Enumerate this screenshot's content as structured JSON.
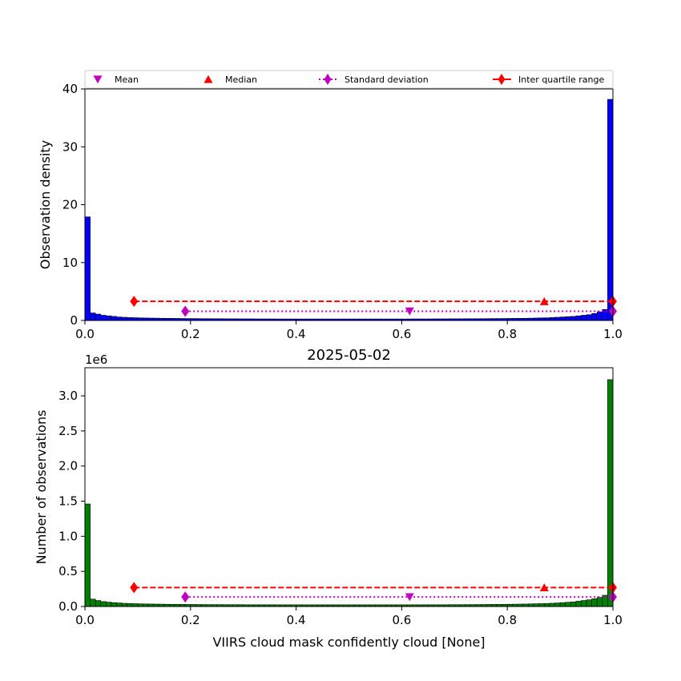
{
  "chart_data": [
    {
      "type": "bar",
      "ylabel": "Observation density",
      "xlim": [
        0.0,
        1.0
      ],
      "ylim": [
        0,
        40
      ],
      "xticks": [
        "0.0",
        "0.2",
        "0.4",
        "0.6",
        "0.8",
        "1.0"
      ],
      "yticks": [
        "0",
        "10",
        "20",
        "30",
        "40"
      ],
      "bar_color": "#0000ff",
      "bin_width": 0.01,
      "values": [
        17.9,
        1.3,
        1.1,
        0.9,
        0.8,
        0.7,
        0.6,
        0.55,
        0.5,
        0.48,
        0.45,
        0.43,
        0.41,
        0.4,
        0.38,
        0.37,
        0.36,
        0.35,
        0.34,
        0.33,
        0.33,
        0.32,
        0.31,
        0.31,
        0.3,
        0.3,
        0.29,
        0.29,
        0.29,
        0.28,
        0.28,
        0.28,
        0.27,
        0.27,
        0.27,
        0.27,
        0.26,
        0.26,
        0.26,
        0.26,
        0.26,
        0.26,
        0.26,
        0.26,
        0.26,
        0.26,
        0.26,
        0.26,
        0.26,
        0.26,
        0.26,
        0.26,
        0.26,
        0.26,
        0.26,
        0.26,
        0.26,
        0.26,
        0.26,
        0.26,
        0.26,
        0.26,
        0.27,
        0.27,
        0.27,
        0.27,
        0.28,
        0.28,
        0.28,
        0.29,
        0.29,
        0.29,
        0.3,
        0.3,
        0.31,
        0.31,
        0.32,
        0.33,
        0.33,
        0.34,
        0.35,
        0.36,
        0.37,
        0.38,
        0.4,
        0.42,
        0.44,
        0.46,
        0.5,
        0.55,
        0.6,
        0.65,
        0.7,
        0.8,
        0.9,
        1.0,
        1.2,
        1.5,
        1.9,
        38.2
      ],
      "stats": {
        "mean": 0.615,
        "median": 0.87,
        "std_interval": [
          0.19,
          1.0
        ],
        "std_y": 1.6,
        "iqr": [
          0.093,
          1.0
        ],
        "iqr_y": 3.3
      },
      "legend": {
        "placement": "top",
        "entries": [
          "Mean",
          "Median",
          "Standard deviation",
          "Inter quartile range"
        ]
      }
    },
    {
      "type": "bar",
      "title": "2025-05-02",
      "xlabel": "VIIRS cloud mask confidently cloud [None]",
      "ylabel": "Number of observations",
      "offset_label": "1e6",
      "xlim": [
        0.0,
        1.0
      ],
      "ylim": [
        0,
        3.4
      ],
      "xticks": [
        "0.0",
        "0.2",
        "0.4",
        "0.6",
        "0.8",
        "1.0"
      ],
      "yticks": [
        "0.0",
        "0.5",
        "1.0",
        "1.5",
        "2.0",
        "2.5",
        "3.0"
      ],
      "bar_color": "#008000",
      "bin_width": 0.01,
      "values": [
        1.46,
        0.105,
        0.085,
        0.07,
        0.062,
        0.055,
        0.05,
        0.045,
        0.042,
        0.04,
        0.038,
        0.036,
        0.035,
        0.034,
        0.033,
        0.032,
        0.031,
        0.03,
        0.03,
        0.029,
        0.029,
        0.028,
        0.028,
        0.027,
        0.027,
        0.027,
        0.026,
        0.026,
        0.026,
        0.026,
        0.025,
        0.025,
        0.025,
        0.025,
        0.025,
        0.025,
        0.024,
        0.024,
        0.024,
        0.024,
        0.024,
        0.024,
        0.024,
        0.024,
        0.024,
        0.024,
        0.024,
        0.024,
        0.024,
        0.024,
        0.024,
        0.024,
        0.024,
        0.024,
        0.024,
        0.024,
        0.024,
        0.024,
        0.024,
        0.024,
        0.024,
        0.024,
        0.024,
        0.024,
        0.025,
        0.025,
        0.025,
        0.025,
        0.025,
        0.026,
        0.026,
        0.026,
        0.027,
        0.027,
        0.028,
        0.028,
        0.029,
        0.03,
        0.03,
        0.031,
        0.032,
        0.033,
        0.034,
        0.035,
        0.037,
        0.039,
        0.041,
        0.043,
        0.046,
        0.05,
        0.055,
        0.06,
        0.065,
        0.075,
        0.085,
        0.095,
        0.11,
        0.13,
        0.16,
        3.23
      ],
      "stats": {
        "mean": 0.615,
        "median": 0.87,
        "std_interval": [
          0.19,
          1.0
        ],
        "std_y": 0.135,
        "iqr": [
          0.093,
          1.0
        ],
        "iqr_y": 0.27
      }
    }
  ],
  "colors": {
    "mean": "#bf00bf",
    "median": "#ff0000",
    "std": "#bf00bf",
    "iqr": "#ff0000"
  }
}
